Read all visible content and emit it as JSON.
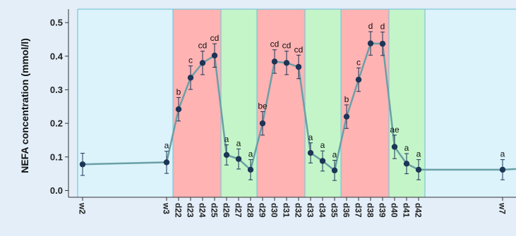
{
  "chart_data": {
    "type": "line",
    "title": "",
    "xlabel": "",
    "ylabel": "NEFA concentration (mmol/l)",
    "ylim": [
      -0.02,
      0.54
    ],
    "yticks": [
      "0.0",
      "0.1",
      "0.2",
      "0.3",
      "0.4",
      "0.5"
    ],
    "grid": false,
    "legend": "none",
    "x": [
      "w2",
      "w3",
      "d22",
      "d23",
      "d24",
      "d25",
      "d26",
      "d27",
      "d28",
      "d29",
      "d30",
      "d31",
      "d32",
      "d33",
      "d34",
      "d35",
      "d36",
      "d37",
      "d38",
      "d39",
      "d40",
      "d41",
      "d42",
      "w7"
    ],
    "series": [
      {
        "color": "#6aa0a6",
        "marker_color": "#1d3557",
        "values": [
          0.078,
          0.084,
          0.242,
          0.336,
          0.38,
          0.402,
          0.106,
          0.094,
          0.062,
          0.2,
          0.384,
          0.38,
          0.368,
          0.112,
          0.088,
          0.06,
          0.22,
          0.33,
          0.438,
          0.437,
          0.13,
          0.08,
          0.062,
          0.062
        ],
        "errors": [
          0.033,
          0.033,
          0.035,
          0.035,
          0.035,
          0.035,
          0.03,
          0.03,
          0.03,
          0.035,
          0.035,
          0.035,
          0.035,
          0.03,
          0.03,
          0.03,
          0.035,
          0.035,
          0.035,
          0.035,
          0.035,
          0.03,
          0.03,
          0.03
        ],
        "labels": [
          "",
          "a",
          "b",
          "c",
          "cd",
          "cd",
          "a",
          "a",
          "a",
          "be",
          "cd",
          "cd",
          "cd",
          "a",
          "a",
          "a",
          "b",
          "c",
          "d",
          "d",
          "ae",
          "a",
          "a",
          "a"
        ]
      }
    ],
    "bands": [
      {
        "from": "w2",
        "to": "w3",
        "color": "#dcf3fb"
      },
      {
        "from": "w3",
        "to": "d26",
        "color": "#ffb3b3"
      },
      {
        "from": "d26",
        "to": "d29",
        "color": "#c4f5c8"
      },
      {
        "from": "d29",
        "to": "d33",
        "color": "#ffb3b3"
      },
      {
        "from": "d33",
        "to": "d36",
        "color": "#c4f5c8"
      },
      {
        "from": "d36",
        "to": "d40",
        "color": "#ffb3b3"
      },
      {
        "from": "d40",
        "to": "d43",
        "color": "#c4f5c8"
      },
      {
        "from": "d43",
        "to": "end",
        "color": "#dcf3fb"
      }
    ]
  }
}
